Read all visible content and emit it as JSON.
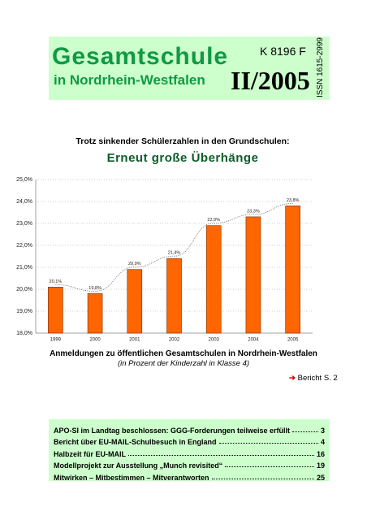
{
  "header": {
    "title": "Gesamtschule",
    "subtitle": "in Nordrhein-Westfalen",
    "code": "K 8196 F",
    "issue": "II/2005",
    "issn": "ISSN 1615-2999"
  },
  "headline": {
    "kicker": "Trotz sinkender Schülerzahlen in den Grundschulen:",
    "title": "Erneut große Überhänge"
  },
  "chart_data": {
    "type": "bar",
    "categories": [
      "1999",
      "2000",
      "2001",
      "2002",
      "2003",
      "2004",
      "2005"
    ],
    "values": [
      20.1,
      19.8,
      20.9,
      21.4,
      22.9,
      23.3,
      23.8
    ],
    "value_labels": [
      "20,1%",
      "19,8%",
      "20,9%",
      "21,4%",
      "22,9%",
      "23,3%",
      "23,8%"
    ],
    "color": "#ff6600",
    "ylim": [
      18,
      25
    ],
    "yticks": [
      {
        "value": 18,
        "label": "18,0%"
      },
      {
        "value": 19,
        "label": "19,0%"
      },
      {
        "value": 20,
        "label": "20,0%"
      },
      {
        "value": 21,
        "label": "21,0%"
      },
      {
        "value": 22,
        "label": "22,0%"
      },
      {
        "value": 23,
        "label": "23,0%"
      },
      {
        "value": 24,
        "label": "24,0%"
      },
      {
        "value": 25,
        "label": "25,0%"
      }
    ],
    "grid": true,
    "caption": "Anmeldungen zu öffentlichen Gesamtschulen in Nordrhein-Westfalen",
    "subcaption": "(in Prozent der Kinderzahl in Klasse 4)"
  },
  "reference": "Bericht S. 2",
  "toc": [
    {
      "title": "APO-SI im Landtag beschlossen: GGG-Forderungen teilweise erfüllt",
      "page": "3"
    },
    {
      "title": "Bericht über EU-MAIL-Schulbesuch in England",
      "page": "4"
    },
    {
      "title": "Halbzeit für EU-MAIL",
      "page": "16"
    },
    {
      "title": "Modellprojekt zur Ausstellung „Munch revisited“",
      "page": "19"
    },
    {
      "title": "Mitwirken – Mitbestimmen – Mitverantworten",
      "page": "25"
    }
  ]
}
